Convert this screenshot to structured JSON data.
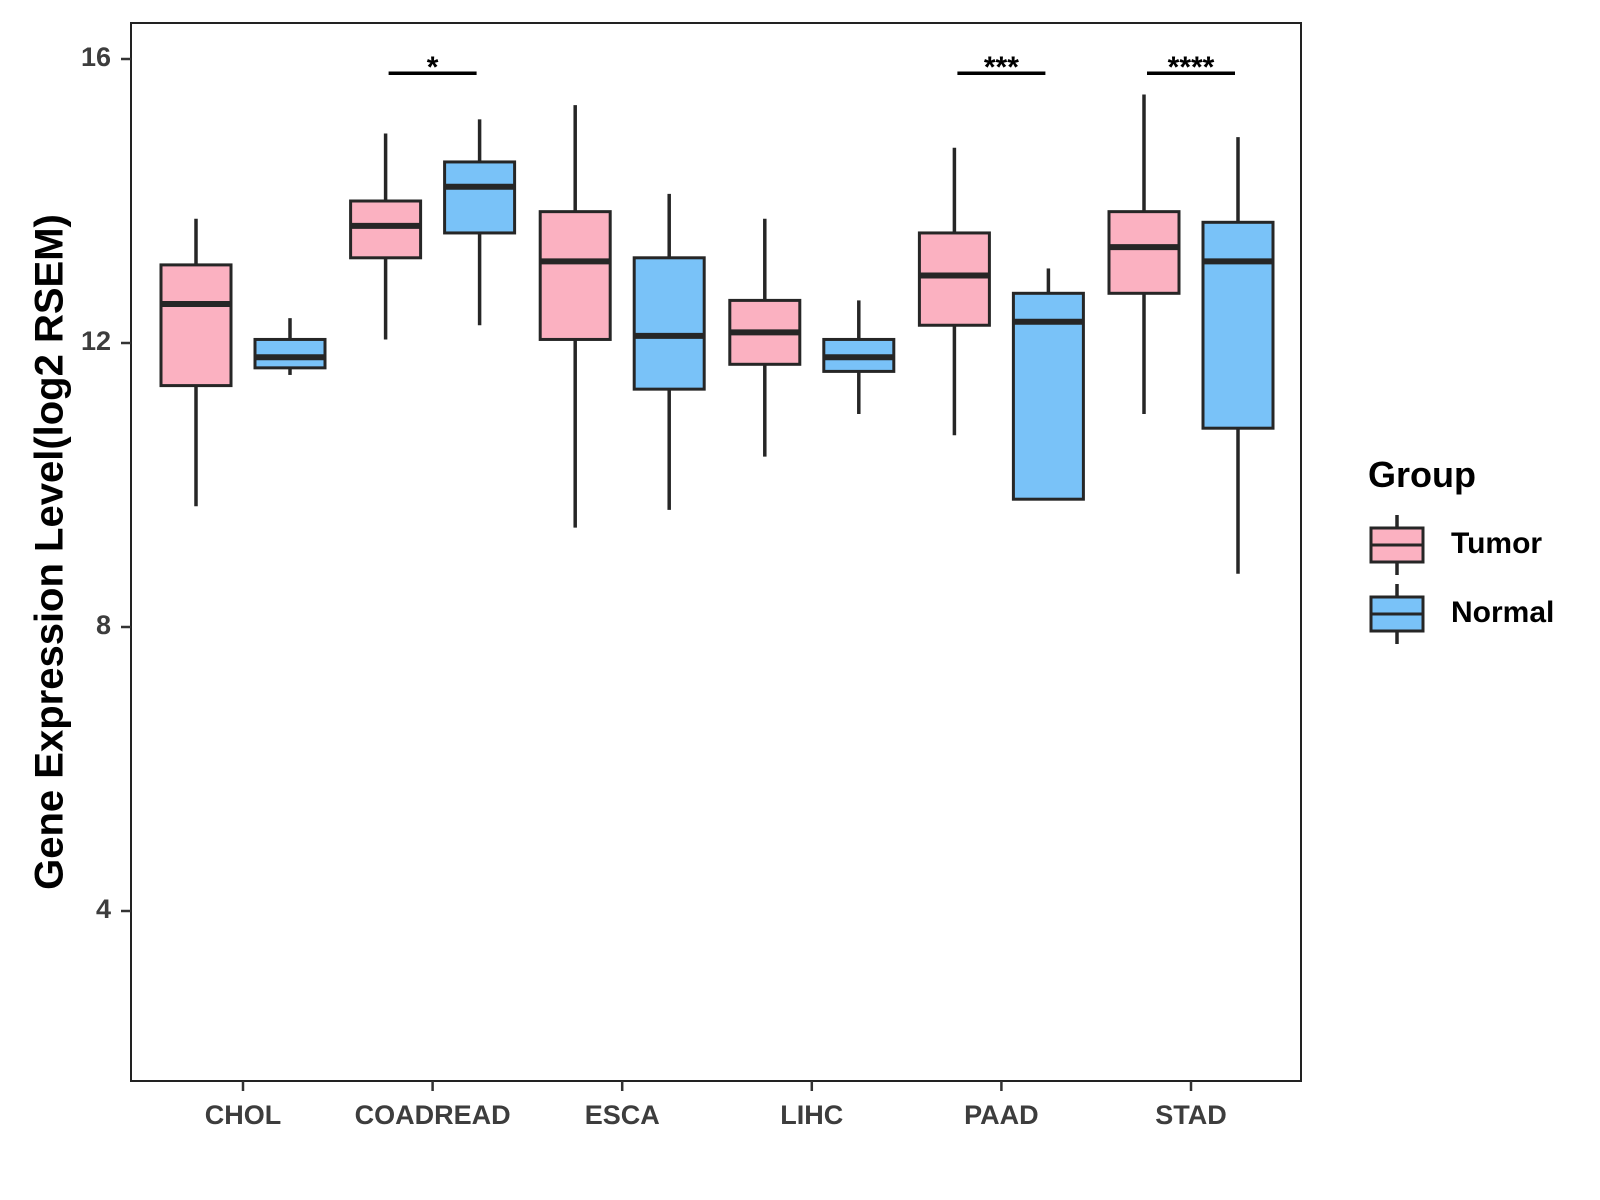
{
  "chart_data": {
    "type": "box",
    "title": "",
    "xlabel": "",
    "ylabel": "Gene Expression Level(log2 RSEM)",
    "ylim": [
      1.6,
      16.5
    ],
    "yticks": [
      4,
      8,
      12,
      16
    ],
    "categories": [
      "CHOL",
      "COADREAD",
      "ESCA",
      "LIHC",
      "PAAD",
      "STAD"
    ],
    "series": [
      {
        "name": "Tumor",
        "color": "#fbb1c1",
        "boxes": [
          {
            "category": "CHOL",
            "min": 9.7,
            "q1": 11.4,
            "median": 12.55,
            "q3": 13.1,
            "max": 13.75
          },
          {
            "category": "COADREAD",
            "min": 12.05,
            "q1": 13.2,
            "median": 13.65,
            "q3": 14.0,
            "max": 14.95
          },
          {
            "category": "ESCA",
            "min": 9.4,
            "q1": 12.05,
            "median": 13.15,
            "q3": 13.85,
            "max": 15.35
          },
          {
            "category": "LIHC",
            "min": 10.4,
            "q1": 11.7,
            "median": 12.15,
            "q3": 12.6,
            "max": 13.75
          },
          {
            "category": "PAAD",
            "min": 10.7,
            "q1": 12.25,
            "median": 12.95,
            "q3": 13.55,
            "max": 14.75
          },
          {
            "category": "STAD",
            "min": 11.0,
            "q1": 12.7,
            "median": 13.35,
            "q3": 13.85,
            "max": 15.5
          }
        ]
      },
      {
        "name": "Normal",
        "color": "#79c2f8",
        "boxes": [
          {
            "category": "CHOL",
            "min": 11.55,
            "q1": 11.65,
            "median": 11.8,
            "q3": 12.05,
            "max": 12.35
          },
          {
            "category": "COADREAD",
            "min": 12.25,
            "q1": 13.55,
            "median": 14.2,
            "q3": 14.55,
            "max": 15.15
          },
          {
            "category": "ESCA",
            "min": 9.65,
            "q1": 11.35,
            "median": 12.1,
            "q3": 13.2,
            "max": 14.1
          },
          {
            "category": "LIHC",
            "min": 11.0,
            "q1": 11.6,
            "median": 11.8,
            "q3": 12.05,
            "max": 12.6
          },
          {
            "category": "PAAD",
            "min": 9.8,
            "q1": 9.8,
            "median": 12.3,
            "q3": 12.7,
            "max": 13.05
          },
          {
            "category": "STAD",
            "min": 8.75,
            "q1": 10.8,
            "median": 13.15,
            "q3": 13.7,
            "max": 14.9
          }
        ]
      }
    ],
    "significance": [
      {
        "category": "COADREAD",
        "label": "*",
        "y": 15.8
      },
      {
        "category": "PAAD",
        "label": "***",
        "y": 15.8
      },
      {
        "category": "STAD",
        "label": "****",
        "y": 15.8
      }
    ],
    "legend": {
      "title": "Group",
      "position": "right",
      "items": [
        {
          "label": "Tumor",
          "color": "#fbb1c1"
        },
        {
          "label": "Normal",
          "color": "#79c2f8"
        }
      ]
    },
    "grid": false
  }
}
